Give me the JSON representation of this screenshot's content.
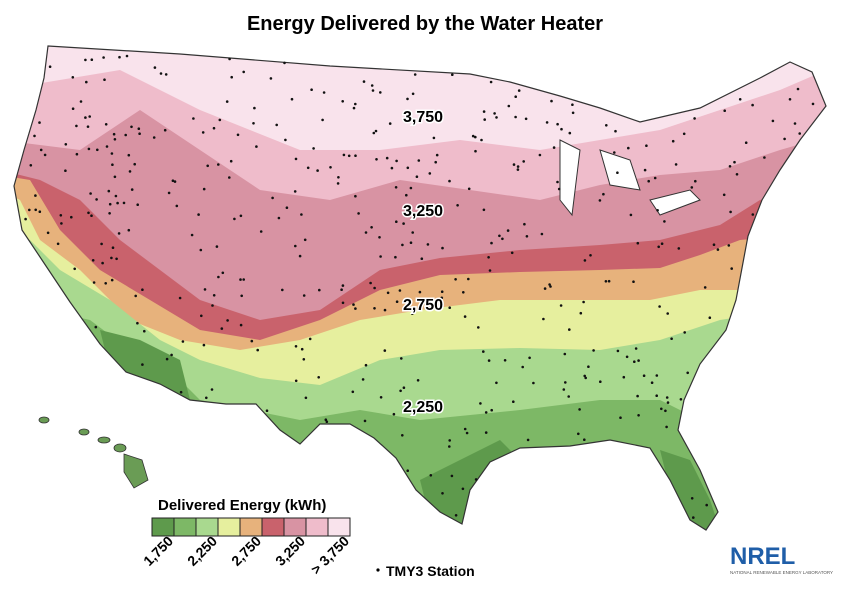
{
  "title": "Energy Delivered by the Water Heater",
  "contour_labels": [
    "3,750",
    "3,250",
    "2,750",
    "2,250"
  ],
  "legend": {
    "title": "Delivered Energy (kWh)",
    "colors": [
      "#5e9a4c",
      "#7db866",
      "#a9d98f",
      "#e6ef9e",
      "#e7b27c",
      "#c9626c",
      "#d893a3",
      "#efbccb",
      "#f9e3ec"
    ],
    "tick_labels": [
      "1,750",
      "2,250",
      "2,750",
      "3,250",
      "> 3,750"
    ],
    "station_label": "TMY3 Station"
  },
  "logo": {
    "name": "NREL",
    "subtitle": "NATIONAL RENEWABLE ENERGY LABORATORY"
  }
}
